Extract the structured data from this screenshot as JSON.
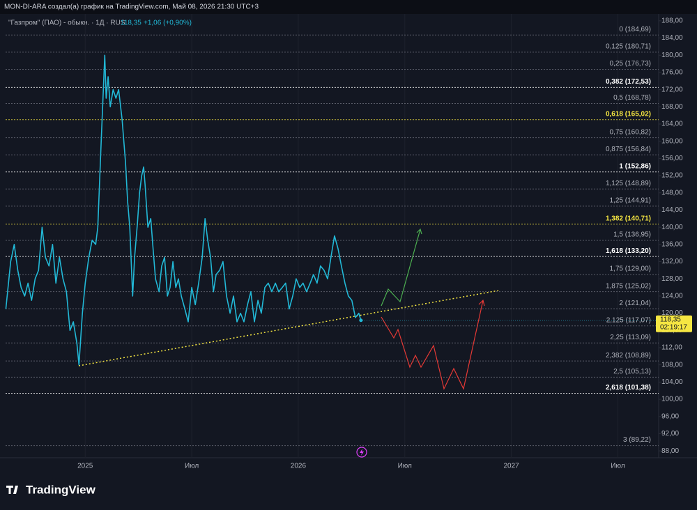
{
  "chart_data": {
    "type": "line",
    "header": "MON-DI-ARA создал(а) график на TradingView.com, Май 08, 2026 21:30 UTC+3",
    "symbol": "\"Газпром\" (ПАО) - обыкн. · 1Д · RUS",
    "price_text": "118,35",
    "change_text": "+1,06 (+0,90%)",
    "last_price": {
      "value": 118.35,
      "label": "118,35"
    },
    "countdown": "02:19:17",
    "brand": "TradingView",
    "xlim": [
      -4.8,
      32.3
    ],
    "xticks": [
      {
        "value": 0,
        "label": "2025"
      },
      {
        "value": 6,
        "label": "Июл"
      },
      {
        "value": 12,
        "label": "2026"
      },
      {
        "value": 18,
        "label": "Июл"
      },
      {
        "value": 24,
        "label": "2027"
      },
      {
        "value": 30,
        "label": "Июл"
      }
    ],
    "ylim": [
      86.4,
      189.6
    ],
    "yticks": [
      {
        "value": 88,
        "label": "88,00"
      },
      {
        "value": 92,
        "label": "92,00"
      },
      {
        "value": 96,
        "label": "96,00"
      },
      {
        "value": 100,
        "label": "100,00"
      },
      {
        "value": 104,
        "label": "104,00"
      },
      {
        "value": 108,
        "label": "108,00"
      },
      {
        "value": 112,
        "label": "112,00"
      },
      {
        "value": 116,
        "label": "116,00"
      },
      {
        "value": 120,
        "label": "120,00"
      },
      {
        "value": 124,
        "label": "124,00"
      },
      {
        "value": 128,
        "label": "128,00"
      },
      {
        "value": 132,
        "label": "132,00"
      },
      {
        "value": 136,
        "label": "136,00"
      },
      {
        "value": 140,
        "label": "140,00"
      },
      {
        "value": 144,
        "label": "144,00"
      },
      {
        "value": 148,
        "label": "148,00"
      },
      {
        "value": 152,
        "label": "152,00"
      },
      {
        "value": 156,
        "label": "156,00"
      },
      {
        "value": 160,
        "label": "160,00"
      },
      {
        "value": 164,
        "label": "164,00"
      },
      {
        "value": 168,
        "label": "168,00"
      },
      {
        "value": 172,
        "label": "172,00"
      },
      {
        "value": 176,
        "label": "176,00"
      },
      {
        "value": 180,
        "label": "180,00"
      },
      {
        "value": 184,
        "label": "184,00"
      },
      {
        "value": 188,
        "label": "188,00"
      }
    ],
    "series": [
      {
        "color": "#22b8d6",
        "x": [
          -4.47,
          -4.2,
          -4.0,
          -3.8,
          -3.61,
          -3.41,
          -3.22,
          -3.02,
          -2.82,
          -2.63,
          -2.43,
          -2.24,
          -2.04,
          -1.84,
          -1.65,
          -1.45,
          -1.25,
          -1.06,
          -0.86,
          -0.67,
          -0.47,
          -0.35,
          -0.16,
          0,
          0.2,
          0.39,
          0.59,
          0.71,
          0.9,
          1.1,
          1.18,
          1.29,
          1.41,
          1.57,
          1.73,
          1.88,
          2.08,
          2.27,
          2.39,
          2.51,
          2.67,
          2.78,
          2.94,
          3.06,
          3.18,
          3.29,
          3.37,
          3.53,
          3.69,
          3.84,
          3.96,
          4.16,
          4.31,
          4.47,
          4.63,
          4.78,
          4.94,
          5.1,
          5.25,
          5.41,
          5.61,
          5.8,
          6.0,
          6.2,
          6.39,
          6.59,
          6.75,
          6.9,
          7.06,
          7.22,
          7.37,
          7.57,
          7.76,
          7.96,
          8.16,
          8.35,
          8.55,
          8.75,
          8.94,
          9.14,
          9.33,
          9.53,
          9.73,
          9.92,
          10.12,
          10.31,
          10.51,
          10.71,
          10.9,
          11.1,
          11.29,
          11.49,
          11.69,
          11.88,
          12.08,
          12.27,
          12.47,
          12.67,
          12.86,
          13.06,
          13.25,
          13.45,
          13.65,
          13.84,
          14.04,
          14.24,
          14.43,
          14.63,
          14.82,
          15.02,
          15.22,
          15.41,
          15.53
        ],
        "values": [
          121,
          132,
          136,
          130,
          126,
          124,
          127,
          123,
          128,
          130,
          140,
          133,
          131,
          136,
          127,
          133,
          128,
          125,
          116,
          118,
          113,
          108,
          120,
          127,
          133,
          137,
          136,
          140,
          160,
          180,
          170,
          175,
          168,
          172,
          170,
          172,
          165,
          155,
          146,
          140,
          124,
          133,
          141,
          148,
          152,
          154,
          150,
          140,
          142,
          134,
          128,
          125,
          131,
          133,
          124,
          126,
          132,
          126,
          128,
          124,
          121,
          118,
          126,
          122,
          127,
          133,
          142,
          137,
          133,
          125,
          129,
          130,
          132,
          124,
          120,
          124,
          118,
          120,
          118,
          122,
          125,
          118,
          123,
          120,
          126,
          127,
          125,
          127,
          125,
          126,
          127,
          121,
          124,
          128,
          126,
          127,
          125,
          127,
          129,
          127,
          131,
          130,
          128,
          133,
          138,
          135,
          131,
          127,
          124,
          123,
          119,
          120,
          118.35
        ]
      }
    ],
    "fib_levels": [
      {
        "label": "0 (184,69)",
        "value": 184.69,
        "color": "#b2b5be"
      },
      {
        "label": "0,125 (180,71)",
        "value": 180.71,
        "color": "#b2b5be"
      },
      {
        "label": "0,25 (176,73)",
        "value": 176.73,
        "color": "#b2b5be"
      },
      {
        "label": "0,382 (172,53)",
        "value": 172.53,
        "color": "#ffffff"
      },
      {
        "label": "0,5 (168,78)",
        "value": 168.78,
        "color": "#b2b5be"
      },
      {
        "label": "0,618 (165,02)",
        "value": 165.02,
        "color": "#f5e642"
      },
      {
        "label": "0,75 (160,82)",
        "value": 160.82,
        "color": "#b2b5be"
      },
      {
        "label": "0,875 (156,84)",
        "value": 156.84,
        "color": "#b2b5be"
      },
      {
        "label": "1 (152,86)",
        "value": 152.86,
        "color": "#ffffff"
      },
      {
        "label": "1,125 (148,89)",
        "value": 148.89,
        "color": "#b2b5be"
      },
      {
        "label": "1,25 (144,91)",
        "value": 144.91,
        "color": "#b2b5be"
      },
      {
        "label": "1,382 (140,71)",
        "value": 140.71,
        "color": "#f5e642"
      },
      {
        "label": "1,5 (136,95)",
        "value": 136.95,
        "color": "#b2b5be"
      },
      {
        "label": "1,618 (133,20)",
        "value": 133.2,
        "color": "#ffffff"
      },
      {
        "label": "1,75 (129,00)",
        "value": 129.0,
        "color": "#b2b5be"
      },
      {
        "label": "1,875 (125,02)",
        "value": 125.02,
        "color": "#b2b5be"
      },
      {
        "label": "2 (121,04)",
        "value": 121.04,
        "color": "#b2b5be"
      },
      {
        "label": "2,125 (117,07)",
        "value": 117.07,
        "color": "#b2b5be"
      },
      {
        "label": "2,25 (113,09)",
        "value": 113.09,
        "color": "#b2b5be"
      },
      {
        "label": "2,382 (108,89)",
        "value": 108.89,
        "color": "#b2b5be"
      },
      {
        "label": "2,5 (105,13)",
        "value": 105.13,
        "color": "#b2b5be"
      },
      {
        "label": "2,618 (101,38)",
        "value": 101.38,
        "color": "#ffffff"
      },
      {
        "label": "3 (89,22)",
        "value": 89.22,
        "color": "#b2b5be"
      }
    ]
  }
}
